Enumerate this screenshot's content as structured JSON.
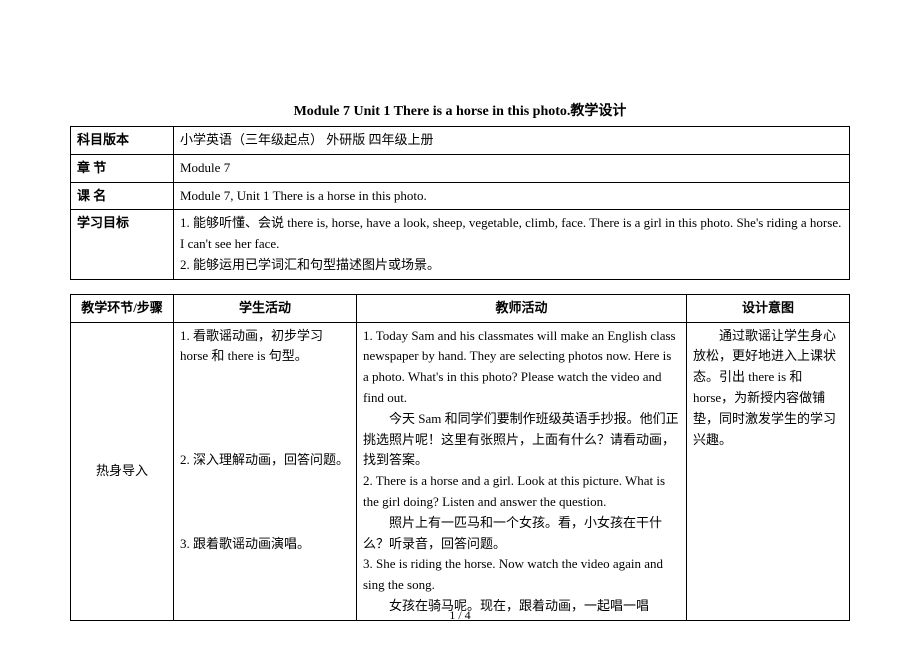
{
  "title": "Module 7 Unit 1 There is a horse in this photo.教学设计",
  "info_table": {
    "rows": [
      {
        "label": "科目版本",
        "value": "小学英语（三年级起点）  外研版  四年级上册"
      },
      {
        "label": "章  节",
        "value": "Module 7"
      },
      {
        "label": "课  名",
        "value": "Module 7, Unit 1      There is a horse in this photo."
      },
      {
        "label": "学习目标",
        "value": "1.  能够听懂、会说 there is, horse, have a look, sheep, vegetable, climb, face. There is a girl in this photo. She's riding a horse. I can't see her face.\n2.  能够运用已学词汇和句型描述图片或场景。"
      }
    ]
  },
  "plan_table": {
    "headers": [
      "教学环节/步骤",
      "学生活动",
      "教师活动",
      "设计意图"
    ],
    "row": {
      "step": "热身导入",
      "student": "1.   看歌谣动画，初步学习 horse 和 there is 句型。\n\n\n\n\n2.   深入理解动画，回答问题。\n\n\n\n3. 跟着歌谣动画演唱。",
      "teacher_p1": "1.   Today Sam and his classmates will make an English class newspaper by hand. They are selecting photos now. Here is a photo. What's in this photo? Please watch the video and find out.",
      "teacher_p2": "今天 Sam 和同学们要制作班级英语手抄报。他们正挑选照片呢！这里有张照片，上面有什么？请看动画，找到答案。",
      "teacher_p3": "2.   There is a horse and a girl. Look at this picture. What is the girl doing? Listen and answer the question.",
      "teacher_p4": "照片上有一匹马和一个女孩。看，小女孩在干什么？听录音，回答问题。",
      "teacher_p5": "3.   She is riding the horse. Now watch the video again and sing the song.",
      "teacher_p6": "女孩在骑马呢。现在，跟着动画，一起唱一唱",
      "design": "通过歌谣让学生身心放松，更好地进入上课状态。引出 there is 和 horse，为新授内容做铺垫，同时激发学生的学习兴趣。"
    }
  },
  "footer": "1  /  4"
}
